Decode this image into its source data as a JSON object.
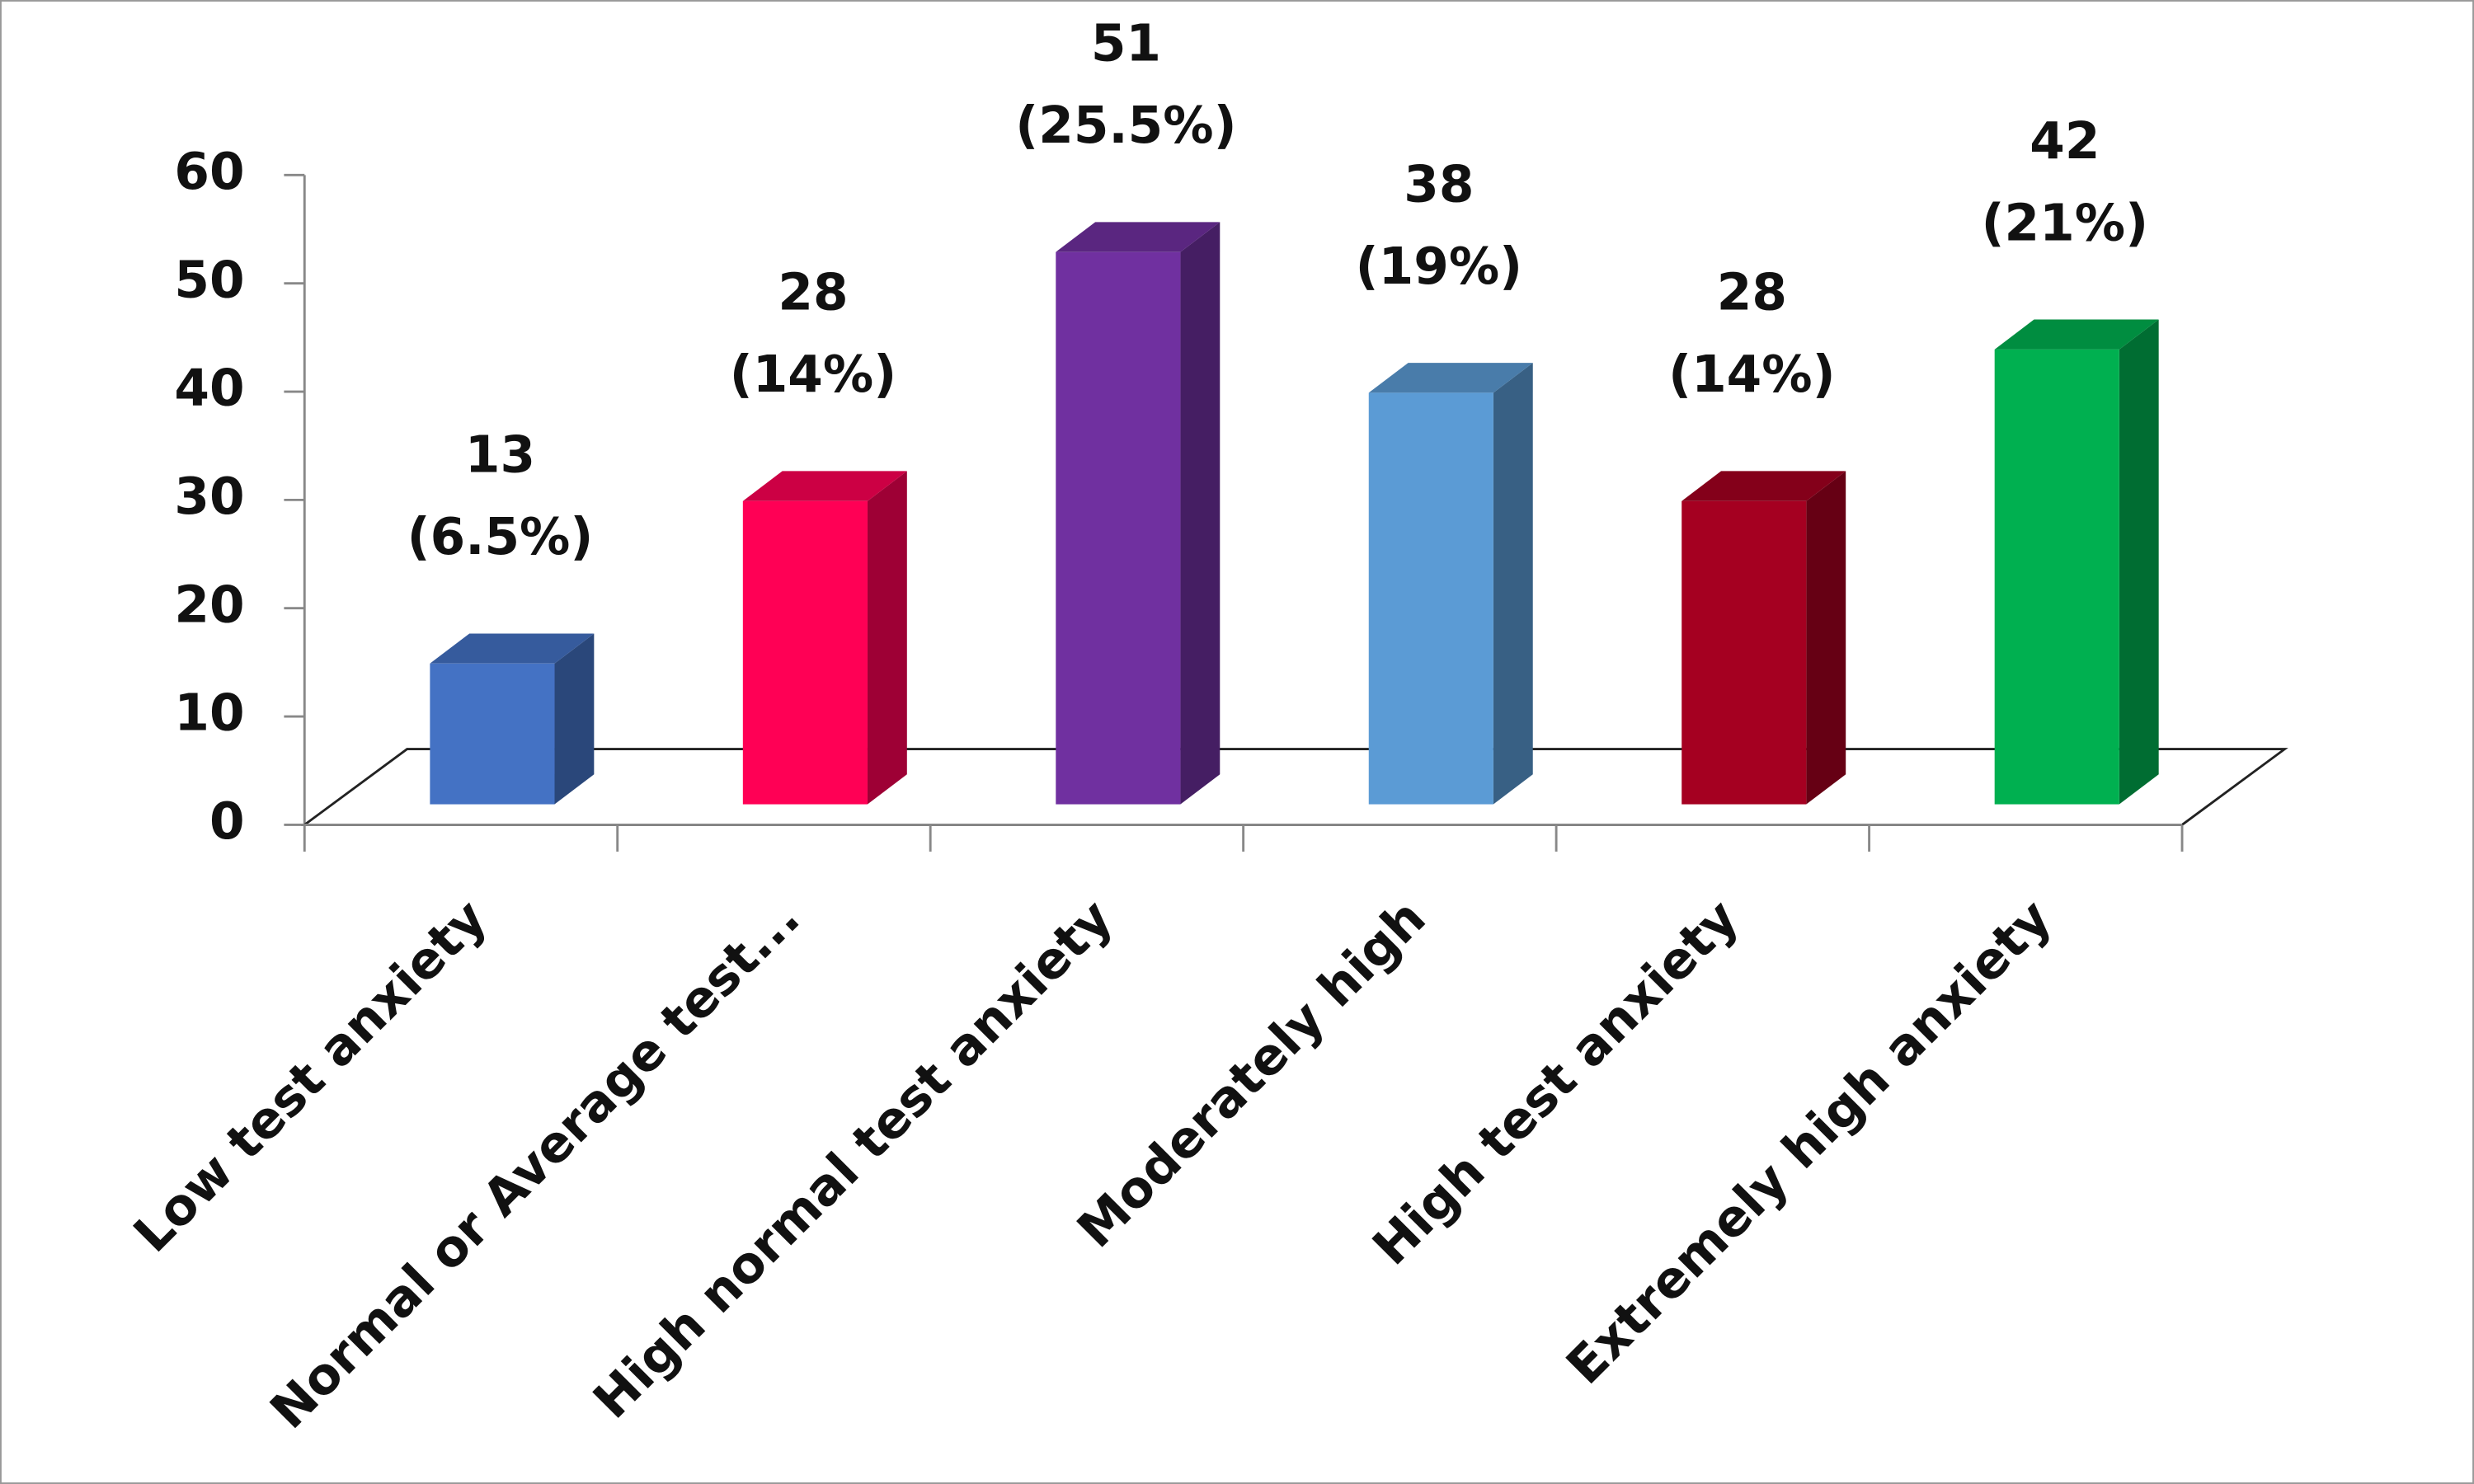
{
  "chart_data": {
    "type": "bar3d",
    "categories": [
      "Low test anxiety",
      "Normal or Average test...",
      "High normal test anxiety",
      "Moderately high",
      "High test anxiety",
      "Extremely high anxiety"
    ],
    "values": [
      13,
      28,
      51,
      38,
      28,
      42
    ],
    "value_labels": [
      [
        "13",
        "(6.5%)"
      ],
      [
        "28",
        "(14%)"
      ],
      [
        "51",
        "(25.5%)"
      ],
      [
        "38",
        "(19%)"
      ],
      [
        "28",
        "(14%)"
      ],
      [
        "42",
        "(21%)"
      ]
    ],
    "colors": [
      "#4472c4",
      "#ff0055",
      "#7030a0",
      "#5b9bd5",
      "#a50021",
      "#00b050"
    ],
    "ylim": [
      0,
      60
    ],
    "yticks": [
      0,
      10,
      20,
      30,
      40,
      50,
      60
    ],
    "grid": false
  }
}
